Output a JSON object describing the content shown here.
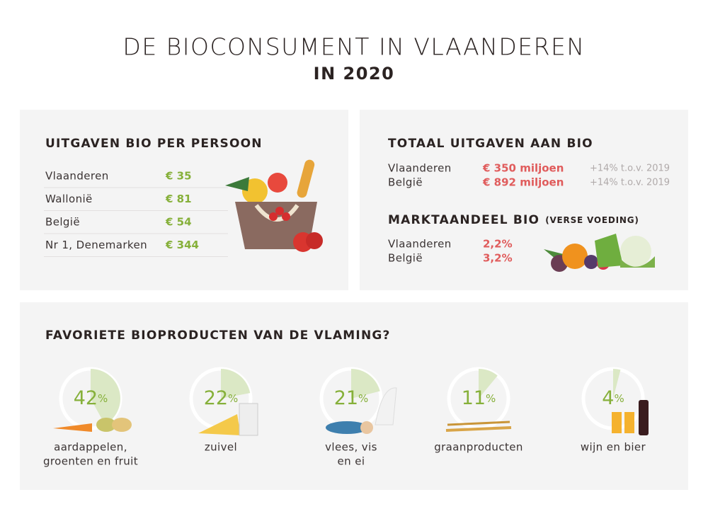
{
  "header": {
    "title": "DE BIOCONSUMENT IN VLAANDEREN",
    "subtitle": "IN 2020"
  },
  "spending_per_person": {
    "title": "UITGAVEN BIO PER PERSOON",
    "rows": [
      [
        "Vlaanderen",
        "€ 35"
      ],
      [
        "Wallonië",
        "€ 81"
      ],
      [
        "België",
        "€ 54"
      ],
      [
        "Nr 1, Denemarken",
        "€ 344"
      ]
    ]
  },
  "total_spending": {
    "title": "TOTAAL UITGAVEN AAN BIO",
    "rows": [
      [
        "Vlaanderen",
        "€ 350 miljoen",
        "+14% t.o.v. 2019"
      ],
      [
        "België",
        "€ 892 miljoen",
        "+14% t.o.v. 2019"
      ]
    ]
  },
  "market_share": {
    "title": "MARKTAANDEEL BIO",
    "note": "(VERSE VOEDING)",
    "rows": [
      [
        "Vlaanderen",
        "2,2%"
      ],
      [
        "België",
        "3,2%"
      ]
    ]
  },
  "favorites": {
    "title": "FAVORIETE BIOPRODUCTEN VAN DE VLAMING?",
    "unit": "%",
    "items": [
      {
        "percent": 42,
        "label": [
          "aardappelen,",
          "groenten en fruit"
        ]
      },
      {
        "percent": 22,
        "label": [
          "zuivel"
        ]
      },
      {
        "percent": 21,
        "label": [
          "vlees, vis",
          "en ei"
        ]
      },
      {
        "percent": 11,
        "label": [
          "graanproducten"
        ]
      },
      {
        "percent": 4,
        "label": [
          "wijn en bier"
        ]
      }
    ]
  }
}
